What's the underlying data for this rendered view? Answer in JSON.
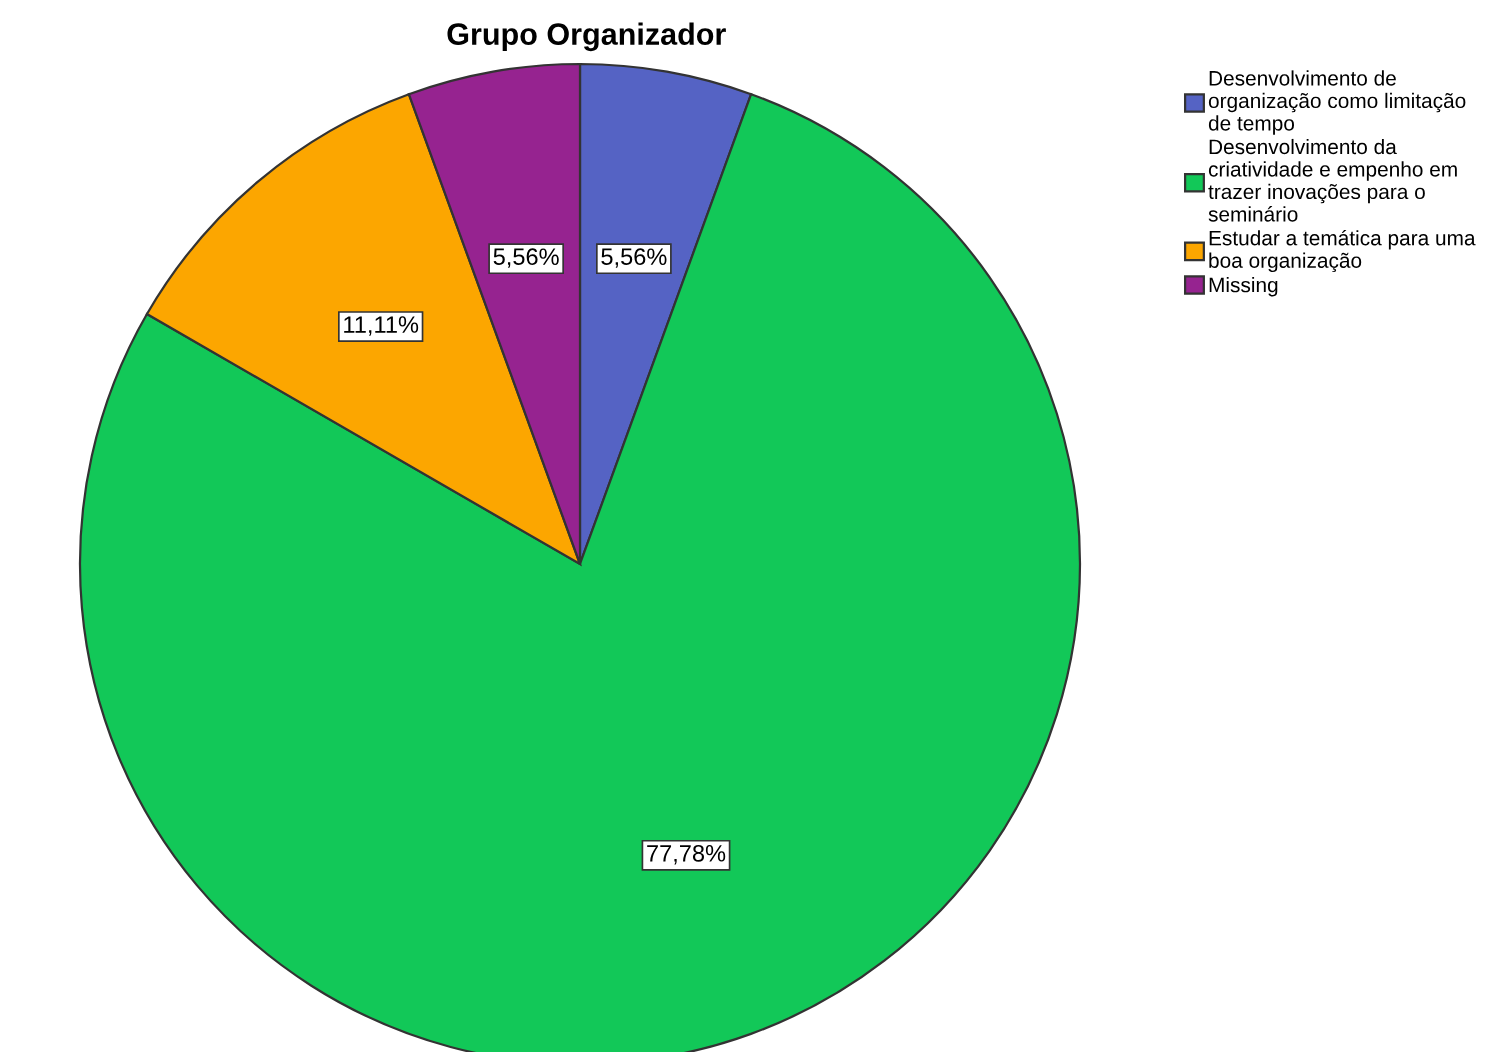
{
  "chart_data": {
    "type": "pie",
    "title": "Grupo Organizador",
    "categories": [
      "Desenvolvimento de\norganização como limitação\nde tempo",
      "Desenvolvimento da\ncriatividade e empenho em\ntrazer inovações para o\nseminário",
      "Estudar a temática para uma\nboa organização",
      "Missing"
    ],
    "values": [
      5.56,
      77.78,
      11.11,
      5.56
    ],
    "colors": [
      "#5563c4",
      "#12c858",
      "#fca600",
      "#962390"
    ],
    "value_labels": [
      "5,56%",
      "77,78%",
      "11,11%",
      "5,56%"
    ],
    "legend": "top right"
  }
}
